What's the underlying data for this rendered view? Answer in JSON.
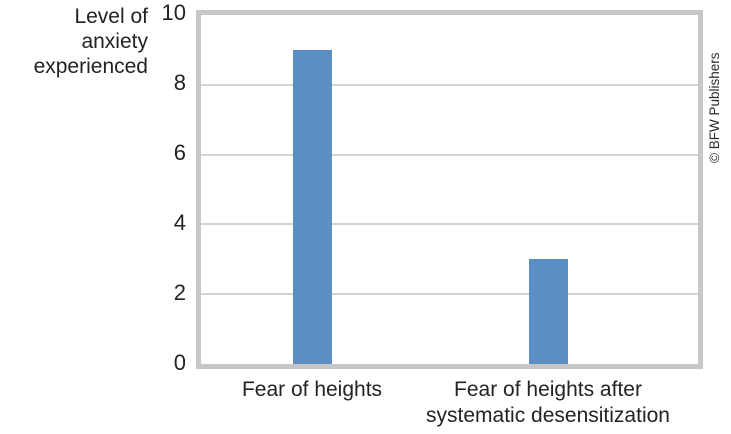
{
  "figure": {
    "y_axis_title": "Level of\nanxiety\nexperienced",
    "credit": "© BFW Publishers"
  },
  "chart_data": {
    "type": "bar",
    "categories": [
      "Fear of heights",
      "Fear of heights after systematic desensitization"
    ],
    "values": [
      9,
      3
    ],
    "title": "",
    "xlabel": "",
    "ylabel": "Level of anxiety experienced",
    "ylim": [
      0,
      10
    ],
    "yticks": [
      0,
      2,
      4,
      6,
      8,
      10
    ],
    "xtick_labels": [
      "Fear of heights",
      "Fear of heights after\nsystematic desensitization"
    ],
    "grid": true,
    "gridline_values": [
      2,
      4,
      6,
      8
    ],
    "legend": false,
    "bar_color": "#5b8ec4",
    "plot_border_color": "#c6c7c9",
    "gridline_color": "#d2d3d5",
    "text_color": "#262223"
  }
}
